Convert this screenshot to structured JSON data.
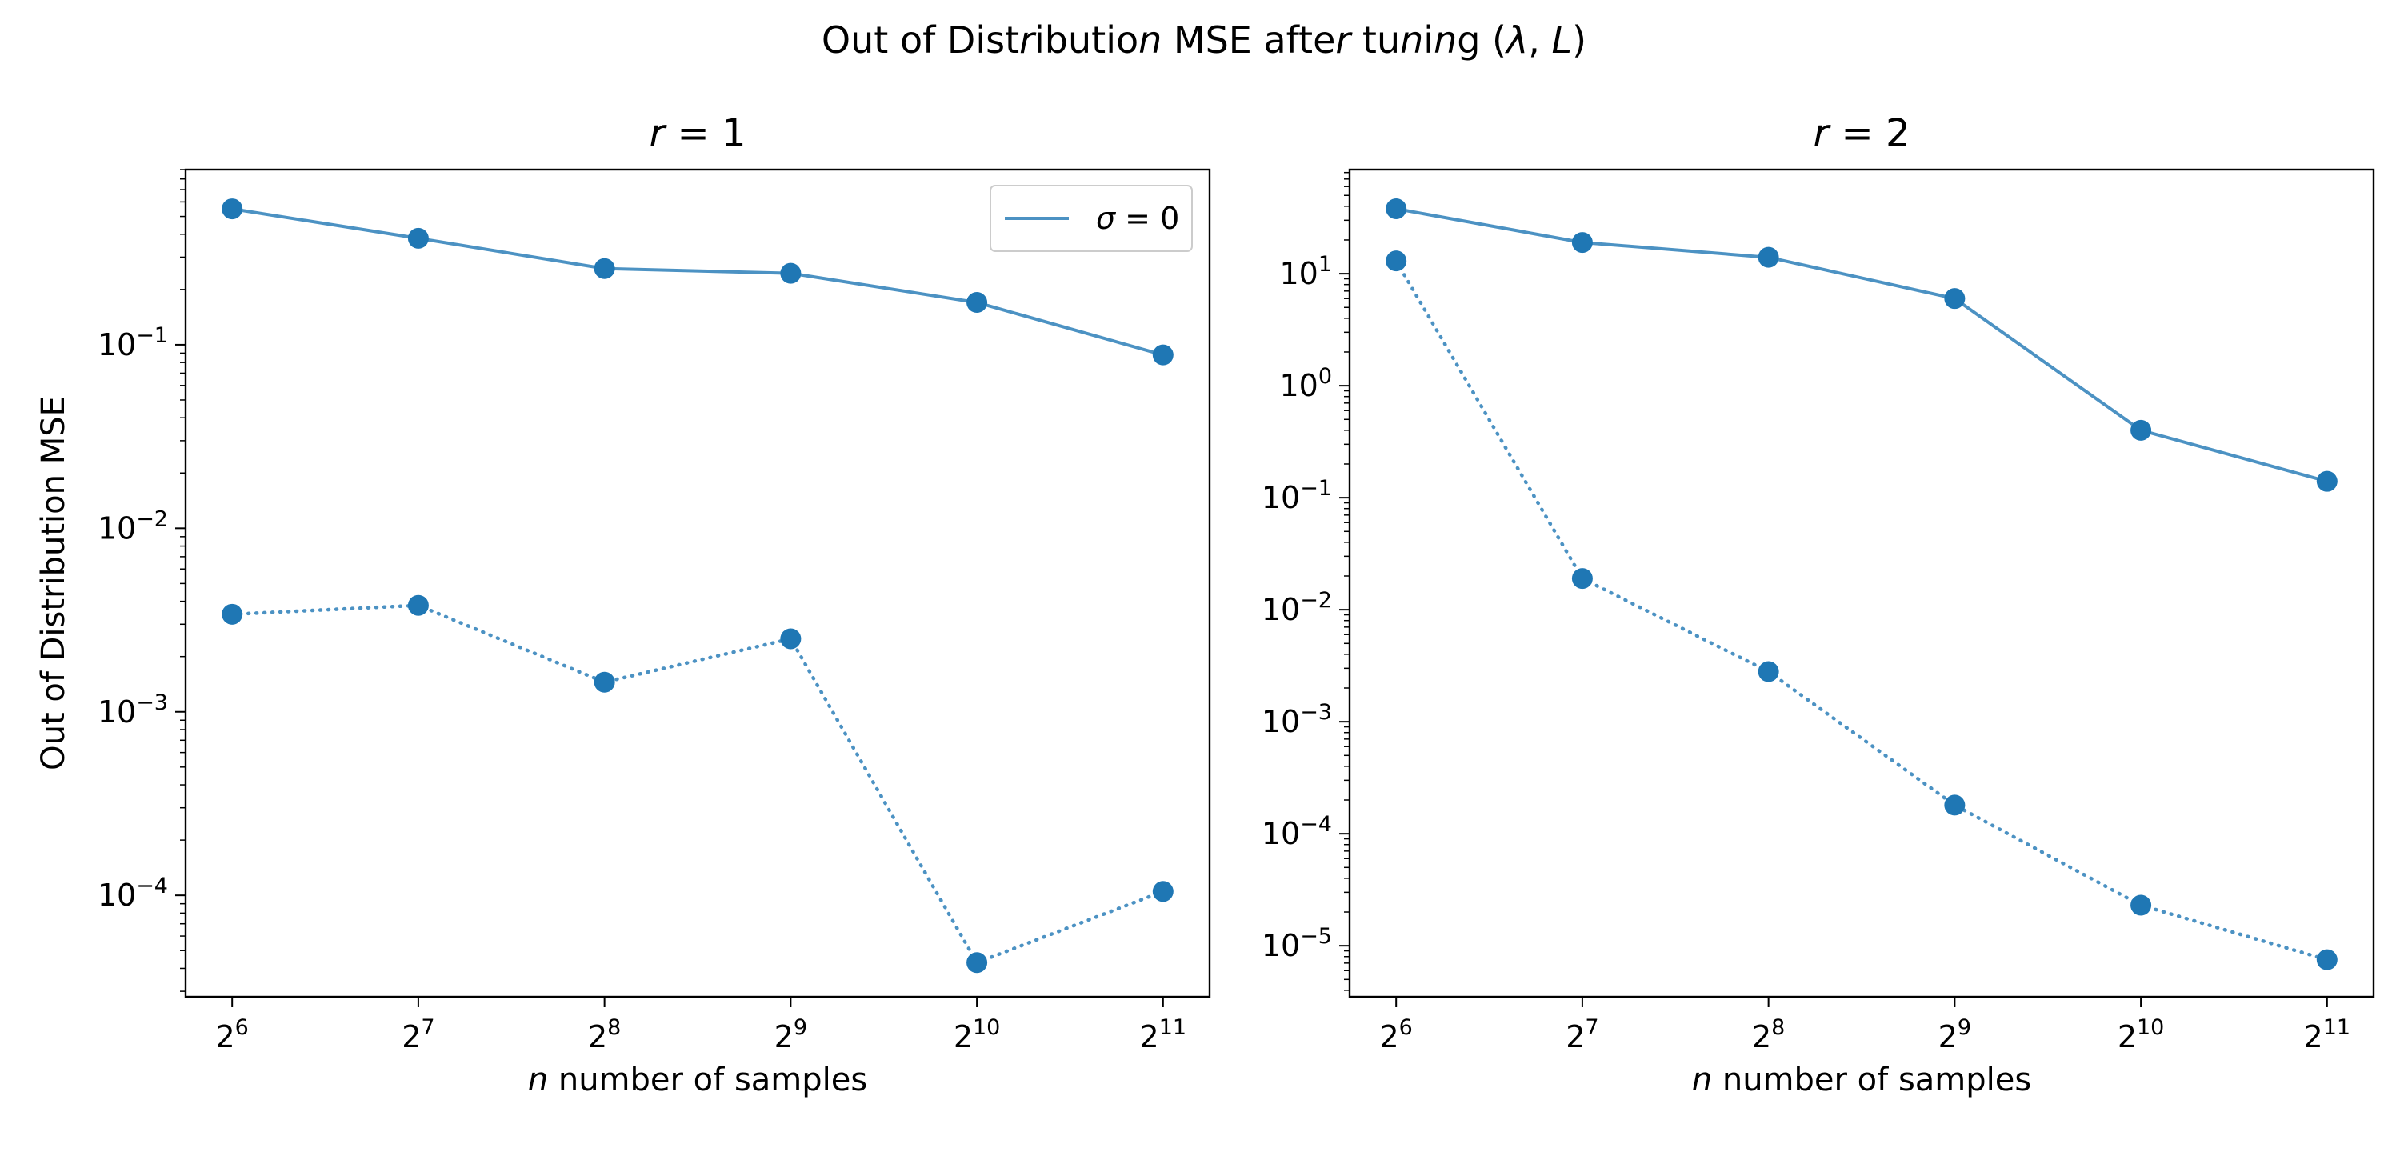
{
  "figure": {
    "title": "Out of Distribution MSE after tuning (λ, L)",
    "colors": {
      "series": "#1f77b4",
      "frame": "#000000",
      "legend_border": "#cccccc"
    }
  },
  "chart_data": [
    {
      "type": "line",
      "title": "r = 1",
      "xlabel": "n number of samples",
      "ylabel": "Out of Distribution MSE",
      "xscale": "log2",
      "yscale": "log10",
      "x": [
        64,
        128,
        256,
        512,
        1024,
        2048
      ],
      "x_tick_labels": [
        {
          "base": "2",
          "exp": "6"
        },
        {
          "base": "2",
          "exp": "7"
        },
        {
          "base": "2",
          "exp": "8"
        },
        {
          "base": "2",
          "exp": "9"
        },
        {
          "base": "2",
          "exp": "10"
        },
        {
          "base": "2",
          "exp": "11"
        }
      ],
      "y_tick_labels": [
        {
          "value": 0.1,
          "base": "10",
          "exp": "−1"
        },
        {
          "value": 0.01,
          "base": "10",
          "exp": "−2"
        },
        {
          "value": 0.001,
          "base": "10",
          "exp": "−3"
        },
        {
          "value": 0.0001,
          "base": "10",
          "exp": "−4"
        }
      ],
      "ylim": [
        2.8e-05,
        0.9
      ],
      "grid": false,
      "legend": {
        "placement": "top-right",
        "entries": [
          {
            "label": "σ = 0",
            "style": "solid"
          }
        ]
      },
      "series": [
        {
          "name": "σ = 0",
          "style": "solid",
          "values": [
            0.55,
            0.38,
            0.26,
            0.245,
            0.17,
            0.088
          ]
        },
        {
          "style": "dotted",
          "values": [
            0.0034,
            0.0038,
            0.00145,
            0.0025,
            4.3e-05,
            0.000105
          ]
        }
      ]
    },
    {
      "type": "line",
      "title": "r = 2",
      "xlabel": "n number of samples",
      "ylabel": "",
      "xscale": "log2",
      "yscale": "log10",
      "x": [
        64,
        128,
        256,
        512,
        1024,
        2048
      ],
      "x_tick_labels": [
        {
          "base": "2",
          "exp": "6"
        },
        {
          "base": "2",
          "exp": "7"
        },
        {
          "base": "2",
          "exp": "8"
        },
        {
          "base": "2",
          "exp": "9"
        },
        {
          "base": "2",
          "exp": "10"
        },
        {
          "base": "2",
          "exp": "11"
        }
      ],
      "y_tick_labels": [
        {
          "value": 10,
          "base": "10",
          "exp": "1"
        },
        {
          "value": 1,
          "base": "10",
          "exp": "0"
        },
        {
          "value": 0.1,
          "base": "10",
          "exp": "−1"
        },
        {
          "value": 0.01,
          "base": "10",
          "exp": "−2"
        },
        {
          "value": 0.001,
          "base": "10",
          "exp": "−3"
        },
        {
          "value": 0.0001,
          "base": "10",
          "exp": "−4"
        },
        {
          "value": 1e-05,
          "base": "10",
          "exp": "−5"
        }
      ],
      "ylim": [
        3.5e-06,
        85
      ],
      "grid": false,
      "series": [
        {
          "style": "solid",
          "values": [
            38,
            19,
            14,
            6.0,
            0.4,
            0.14
          ]
        },
        {
          "style": "dotted",
          "values": [
            13,
            0.019,
            0.0028,
            0.00018,
            2.3e-05,
            7.5e-06
          ]
        }
      ]
    }
  ]
}
